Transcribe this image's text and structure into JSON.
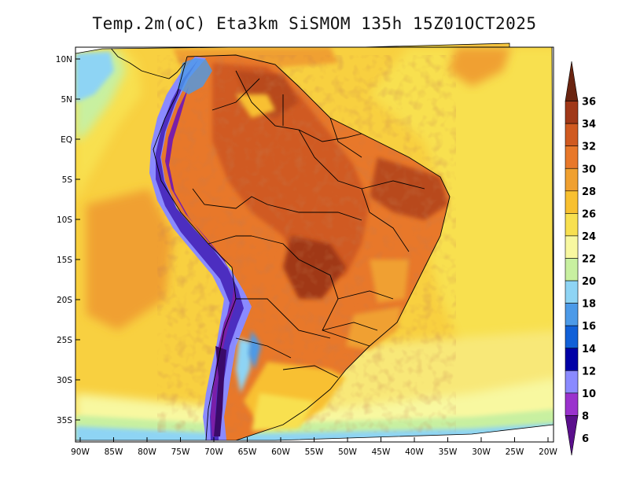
{
  "map": {
    "title": "Temp.2m(oC) Eta3km SiSMOM 135h 15Z01OCT2025",
    "variable": "Temperature at 2 m",
    "units": "oC",
    "lat_ticks": [
      "10N",
      "5N",
      "EQ",
      "5S",
      "10S",
      "15S",
      "20S",
      "25S",
      "30S",
      "35S"
    ],
    "lon_ticks": [
      "90W",
      "85W",
      "80W",
      "75W",
      "70W",
      "65W",
      "60W",
      "55W",
      "50W",
      "45W",
      "40W",
      "35W",
      "30W",
      "25W",
      "20W"
    ]
  },
  "colorbar": {
    "levels": [
      "6",
      "8",
      "10",
      "12",
      "14",
      "16",
      "18",
      "20",
      "22",
      "24",
      "26",
      "28",
      "30",
      "32",
      "34",
      "36"
    ],
    "colors": [
      "#5a0f8c",
      "#9a32cd",
      "#8a8aff",
      "#0000a6",
      "#1160d8",
      "#4c9ae8",
      "#8ed4f4",
      "#c8f0a0",
      "#f8f8a0",
      "#f8e050",
      "#f8c030",
      "#f0a030",
      "#e8782a",
      "#d05a20",
      "#a03818",
      "#6a2410"
    ]
  }
}
